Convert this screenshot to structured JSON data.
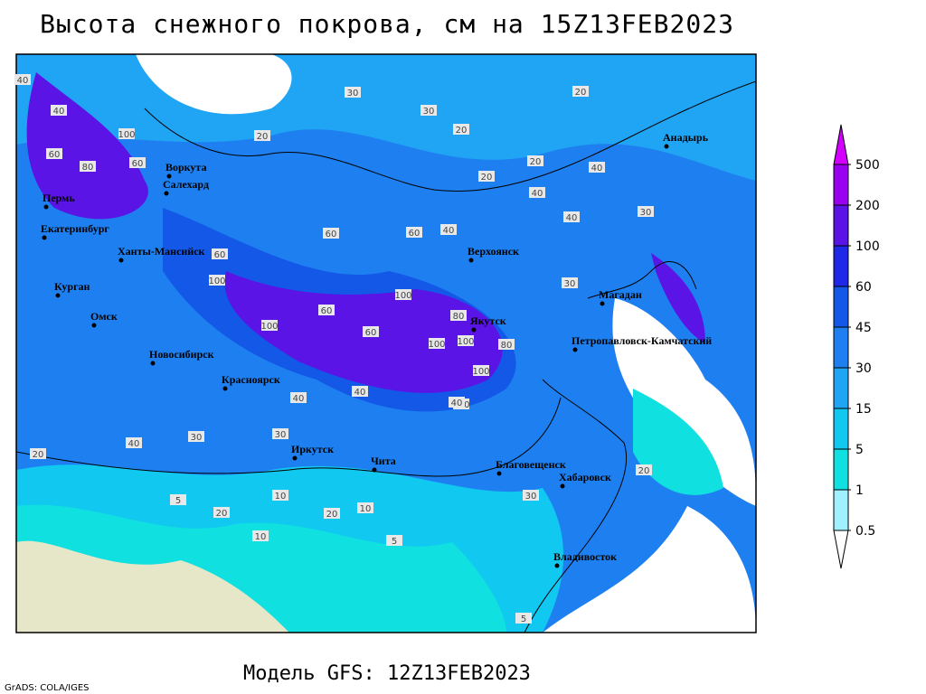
{
  "title": "Высота снежного покрова, см на 15Z13FEB2023",
  "footer": "Модель GFS: 12Z13FEB2023",
  "credit": "GrADS: COLA/IGES",
  "legend": {
    "levels": [
      0.5,
      1,
      5,
      15,
      30,
      45,
      60,
      100,
      200,
      500
    ],
    "colors": [
      "#ffffff",
      "#a0f0ff",
      "#10e0e0",
      "#10c8f0",
      "#20a4f4",
      "#1e80f0",
      "#1458e8",
      "#1e28e6",
      "#5a14e6",
      "#9a00f0",
      "#d400ff"
    ]
  },
  "cities": [
    "Воркута",
    "Салехард",
    "Пермь",
    "Екатеринбург",
    "Ханты-Мансийск",
    "Курган",
    "Омск",
    "Новосибирск",
    "Красноярск",
    "Иркутск",
    "Чита",
    "Верхоянск",
    "Якутск",
    "Магадан",
    "Анадырь",
    "Петропавловск-Камчатский",
    "Благовещенск",
    "Хабаровск",
    "Владивосток"
  ],
  "contour_labels": [
    40,
    40,
    100,
    60,
    80,
    60,
    20,
    30,
    30,
    20,
    20,
    20,
    20,
    40,
    40,
    40,
    30,
    60,
    60,
    40,
    60,
    100,
    100,
    60,
    100,
    80,
    60,
    100,
    100,
    100,
    80,
    100,
    40,
    40,
    30,
    30,
    40,
    20,
    20,
    10,
    20,
    10,
    5,
    10,
    5,
    40,
    30,
    20,
    5,
    30
  ]
}
